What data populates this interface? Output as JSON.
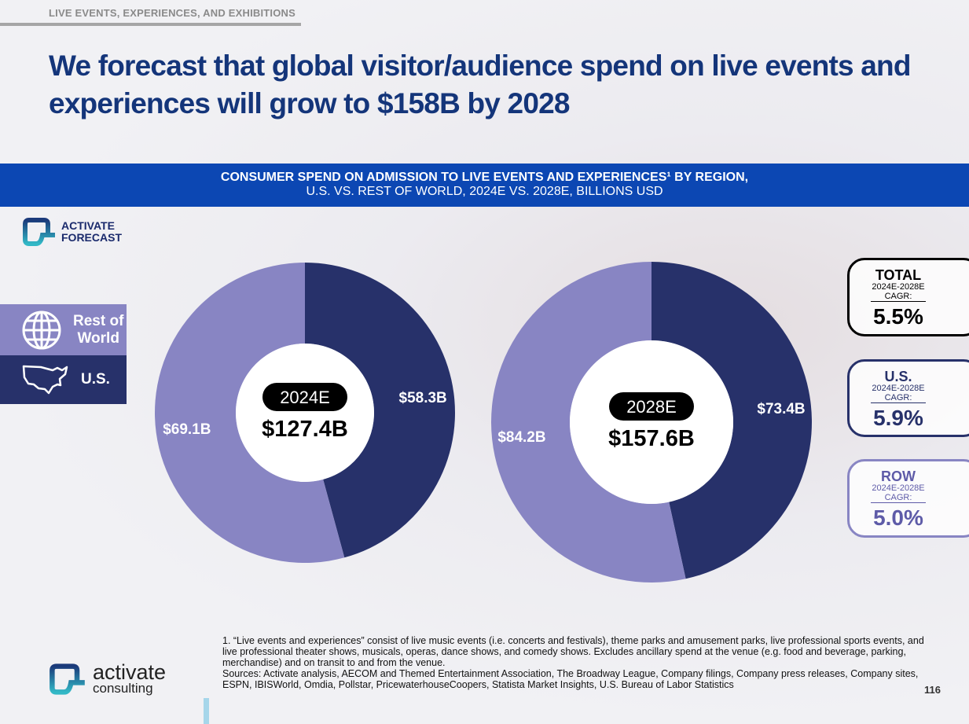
{
  "header": {
    "section": "LIVE EVENTS, EXPERIENCES, AND EXHIBITIONS",
    "title": "We forecast that global visitor/audience spend on live events and experiences will grow to $158B by 2028"
  },
  "banner": {
    "line1": "CONSUMER SPEND ON ADMISSION TO LIVE EVENTS AND EXPERIENCES¹ BY REGION,",
    "line2": "U.S. VS. REST OF WORLD, 2024E VS. 2028E, BILLIONS USD"
  },
  "badge": {
    "line1": "ACTIVATE",
    "line2": "FORECAST"
  },
  "legend": [
    {
      "label1": "Rest of",
      "label2": "World",
      "icon": "globe-icon",
      "color": "#8885c3"
    },
    {
      "label1": "U.S.",
      "icon": "usa-map-icon",
      "color": "#27316a"
    }
  ],
  "chart_data": {
    "type": "pie",
    "subtype": "donut",
    "title": "Consumer spend on admission to live events and experiences by region",
    "unit": "Billions USD",
    "charts": [
      {
        "year": "2024E",
        "total_label": "$127.4B",
        "total": 127.4,
        "slices": [
          {
            "name": "U.S.",
            "value": 58.3,
            "label": "$58.3B",
            "color": "#27316a"
          },
          {
            "name": "Rest of World",
            "value": 69.1,
            "label": "$69.1B",
            "color": "#8885c3"
          }
        ]
      },
      {
        "year": "2028E",
        "total_label": "$157.6B",
        "total": 157.6,
        "slices": [
          {
            "name": "U.S.",
            "value": 73.4,
            "label": "$73.4B",
            "color": "#27316a"
          },
          {
            "name": "Rest of World",
            "value": 84.2,
            "label": "$84.2B",
            "color": "#8885c3"
          }
        ]
      }
    ]
  },
  "cagr": [
    {
      "head": "TOTAL",
      "period": "2024E-2028E",
      "label": "CAGR:",
      "value": "5.5%",
      "color": "#000000"
    },
    {
      "head": "U.S.",
      "period": "2024E-2028E",
      "label": "CAGR:",
      "value": "5.9%",
      "color": "#27316a"
    },
    {
      "head": "ROW",
      "period": "2024E-2028E",
      "label": "CAGR:",
      "value": "5.0%",
      "color": "#7e7bbf"
    }
  ],
  "footnote": "1. “Live events and experiences” consist of live music events (i.e. concerts and festivals), theme parks and amusement parks, live professional sports events, and live professional theater shows, musicals, operas, dance shows, and comedy shows. Excludes ancillary spend at the venue (e.g. food and beverage, parking, merchandise) and on transit to and from the venue.",
  "sources": "Sources: Activate analysis, AECOM and Themed Entertainment Association, The Broadway League, Company filings, Company press releases, Company sites, ESPN, IBISWorld, Omdia, Pollstar, PricewaterhouseCoopers, Statista Market Insights, U.S. Bureau of Labor Statistics",
  "page": "116",
  "logo": {
    "name": "activate",
    "sub": "consulting"
  }
}
